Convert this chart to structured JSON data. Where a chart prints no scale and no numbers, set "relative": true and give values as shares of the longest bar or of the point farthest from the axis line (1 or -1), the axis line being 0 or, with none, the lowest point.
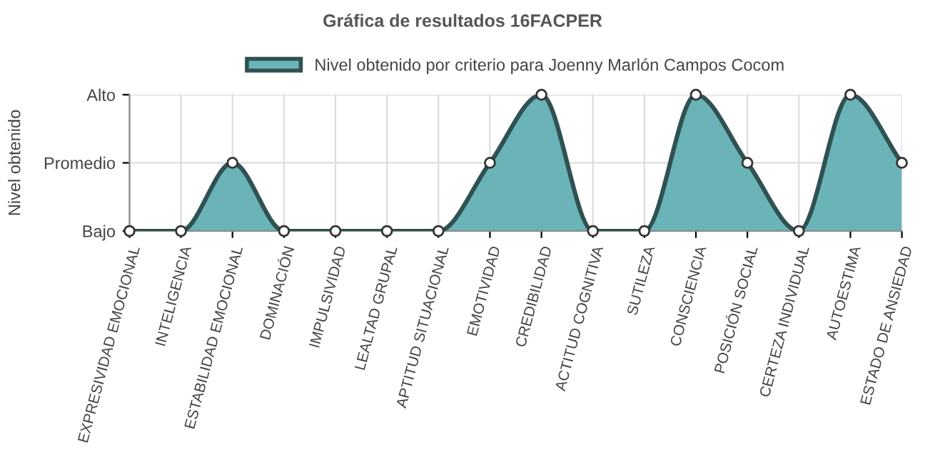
{
  "chart_data": {
    "type": "area",
    "title": "Gráfica de resultados 16FACPER",
    "ylabel": "Nivel obtenido",
    "relative": true,
    "categories": [
      "EXPRESIVIDAD EMOCIONAL",
      "INTELIGENCIA",
      "ESTABILIDAD EMOCIONAL",
      "DOMINACIÓN",
      "IMPULSIVIDAD",
      "LEALTAD GRUPAL",
      "APTITUD SITUACIONAL",
      "EMOTIVIDAD",
      "CREDIBILIDAD",
      "ACTITUD COGNITIVA",
      "SUTILEZA",
      "CONSCIENCIA",
      "POSICIÓN SOCIAL",
      "CERTEZA INDIVIDUAL",
      "AUTOESTIMA",
      "ESTADO DE ANSIEDAD"
    ],
    "y_categories": [
      "Alto",
      "Promedio",
      "Bajo"
    ],
    "series": [
      {
        "name": "Nivel obtenido por criterio para Joenny Marlón Campos Cocom",
        "color": "#6ab3b6",
        "values": [
          0,
          0,
          0.5,
          0,
          0,
          0,
          0,
          0.5,
          1,
          0,
          0,
          1,
          0.5,
          0,
          1,
          0.5
        ]
      }
    ],
    "grid": true,
    "legend": "top",
    "marker": "circle",
    "line_style": "solid"
  }
}
